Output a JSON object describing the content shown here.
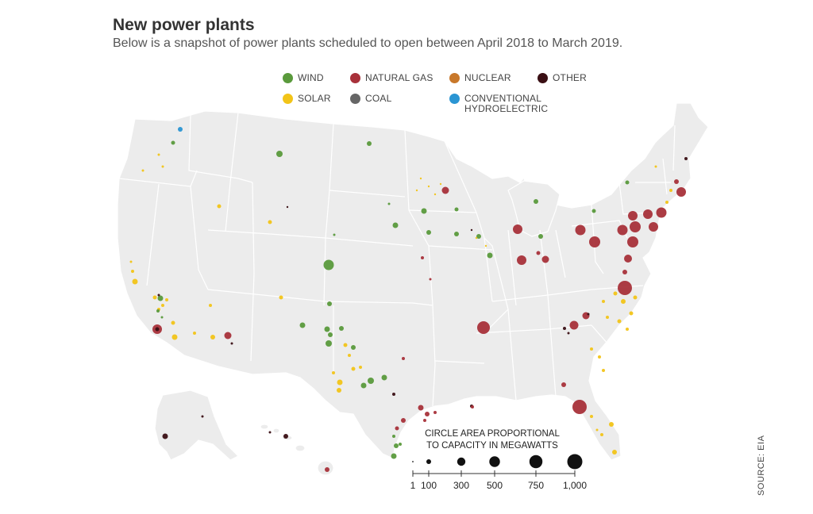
{
  "title": "New power plants",
  "subtitle": "Below is a snapshot of power plants scheduled to open between April 2018 to March 2019.",
  "source": "SOURCE: EIA",
  "legend": [
    {
      "label": "WIND",
      "color": "#5a9a3c"
    },
    {
      "label": "NATURAL GAS",
      "color": "#a8313a"
    },
    {
      "label": "NUCLEAR",
      "color": "#c8782a"
    },
    {
      "label": "OTHER",
      "color": "#3a0f14"
    },
    {
      "label": "SOLAR",
      "color": "#f2c418"
    },
    {
      "label": "COAL",
      "color": "#666666"
    },
    {
      "label": "CONVENTIONAL HYDROELECTRIC",
      "color": "#2a95d3"
    }
  ],
  "scale": {
    "title_line1": "CIRCLE AREA PROPORTIONAL",
    "title_line2": "TO CAPACITY IN MEGAWATTS",
    "ticks": [
      "1",
      "100",
      "300",
      "500",
      "750",
      "1,000"
    ],
    "values": [
      1,
      100,
      300,
      500,
      750,
      1000
    ]
  }
}
